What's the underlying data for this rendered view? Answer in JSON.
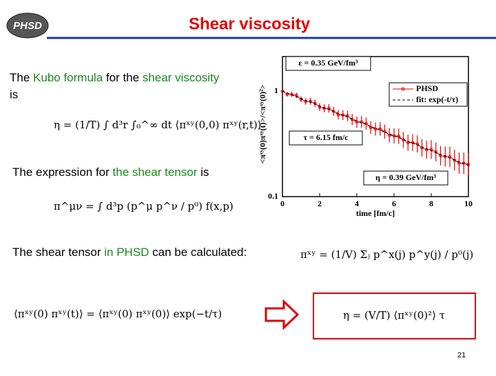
{
  "logo": "PHSD",
  "title": "Shear viscosity",
  "paragraphs": [
    {
      "segments": [
        {
          "text": "The ",
          "accent": false
        },
        {
          "text": "Kubo formula",
          "accent": true
        },
        {
          "text": " for the ",
          "accent": false
        },
        {
          "text": "shear viscosity",
          "accent": true
        }
      ],
      "continuation": "is"
    },
    {
      "segments": [
        {
          "text": "The expression for ",
          "accent": false
        },
        {
          "text": "the shear tensor",
          "accent": true
        },
        {
          "text": " is",
          "accent": false
        }
      ]
    },
    {
      "segments": [
        {
          "text": "The shear tensor ",
          "accent": false
        },
        {
          "text": "in PHSD",
          "accent": true
        },
        {
          "text": " can be calculated:",
          "accent": false
        }
      ]
    }
  ],
  "formulas": {
    "kubo": "η = (1/T) ∫ d³r ∫₀^∞ dt ⟨πˣʸ(0,0) πˣʸ(r,t)⟩",
    "tensor": "π^μν = ∫ d³p (p^μ p^ν / p⁰) f(x,p)",
    "phsd": "πˣʸ = (1/V) Σⱼ p^x(j) p^y(j) / p⁰(j)",
    "correlator": "⟨πˣʸ(0) πˣʸ(t)⟩ = ⟨πˣʸ(0) πˣʸ(0)⟩ exp(−t/τ)",
    "result": "η = (V/T) ⟨πˣʸ(0)²⟩ τ"
  },
  "figure": {
    "energy_density": "ε = 0.35 GeV/fm³",
    "legend": [
      "PHSD",
      "fit: exp(-t/τ)"
    ],
    "tau": "τ = 6.15 fm/c",
    "eta": "η = 0.39 GeV/fm³",
    "y_label": "<πˣʸ(0)πˣʸ(t)>/<πˣʸ(0)²>",
    "x_label": "time [fm/c]",
    "xticks": [
      0,
      2,
      4,
      6,
      8,
      10
    ],
    "yticks": [
      "1",
      "0.1"
    ]
  },
  "page_number": "21"
}
